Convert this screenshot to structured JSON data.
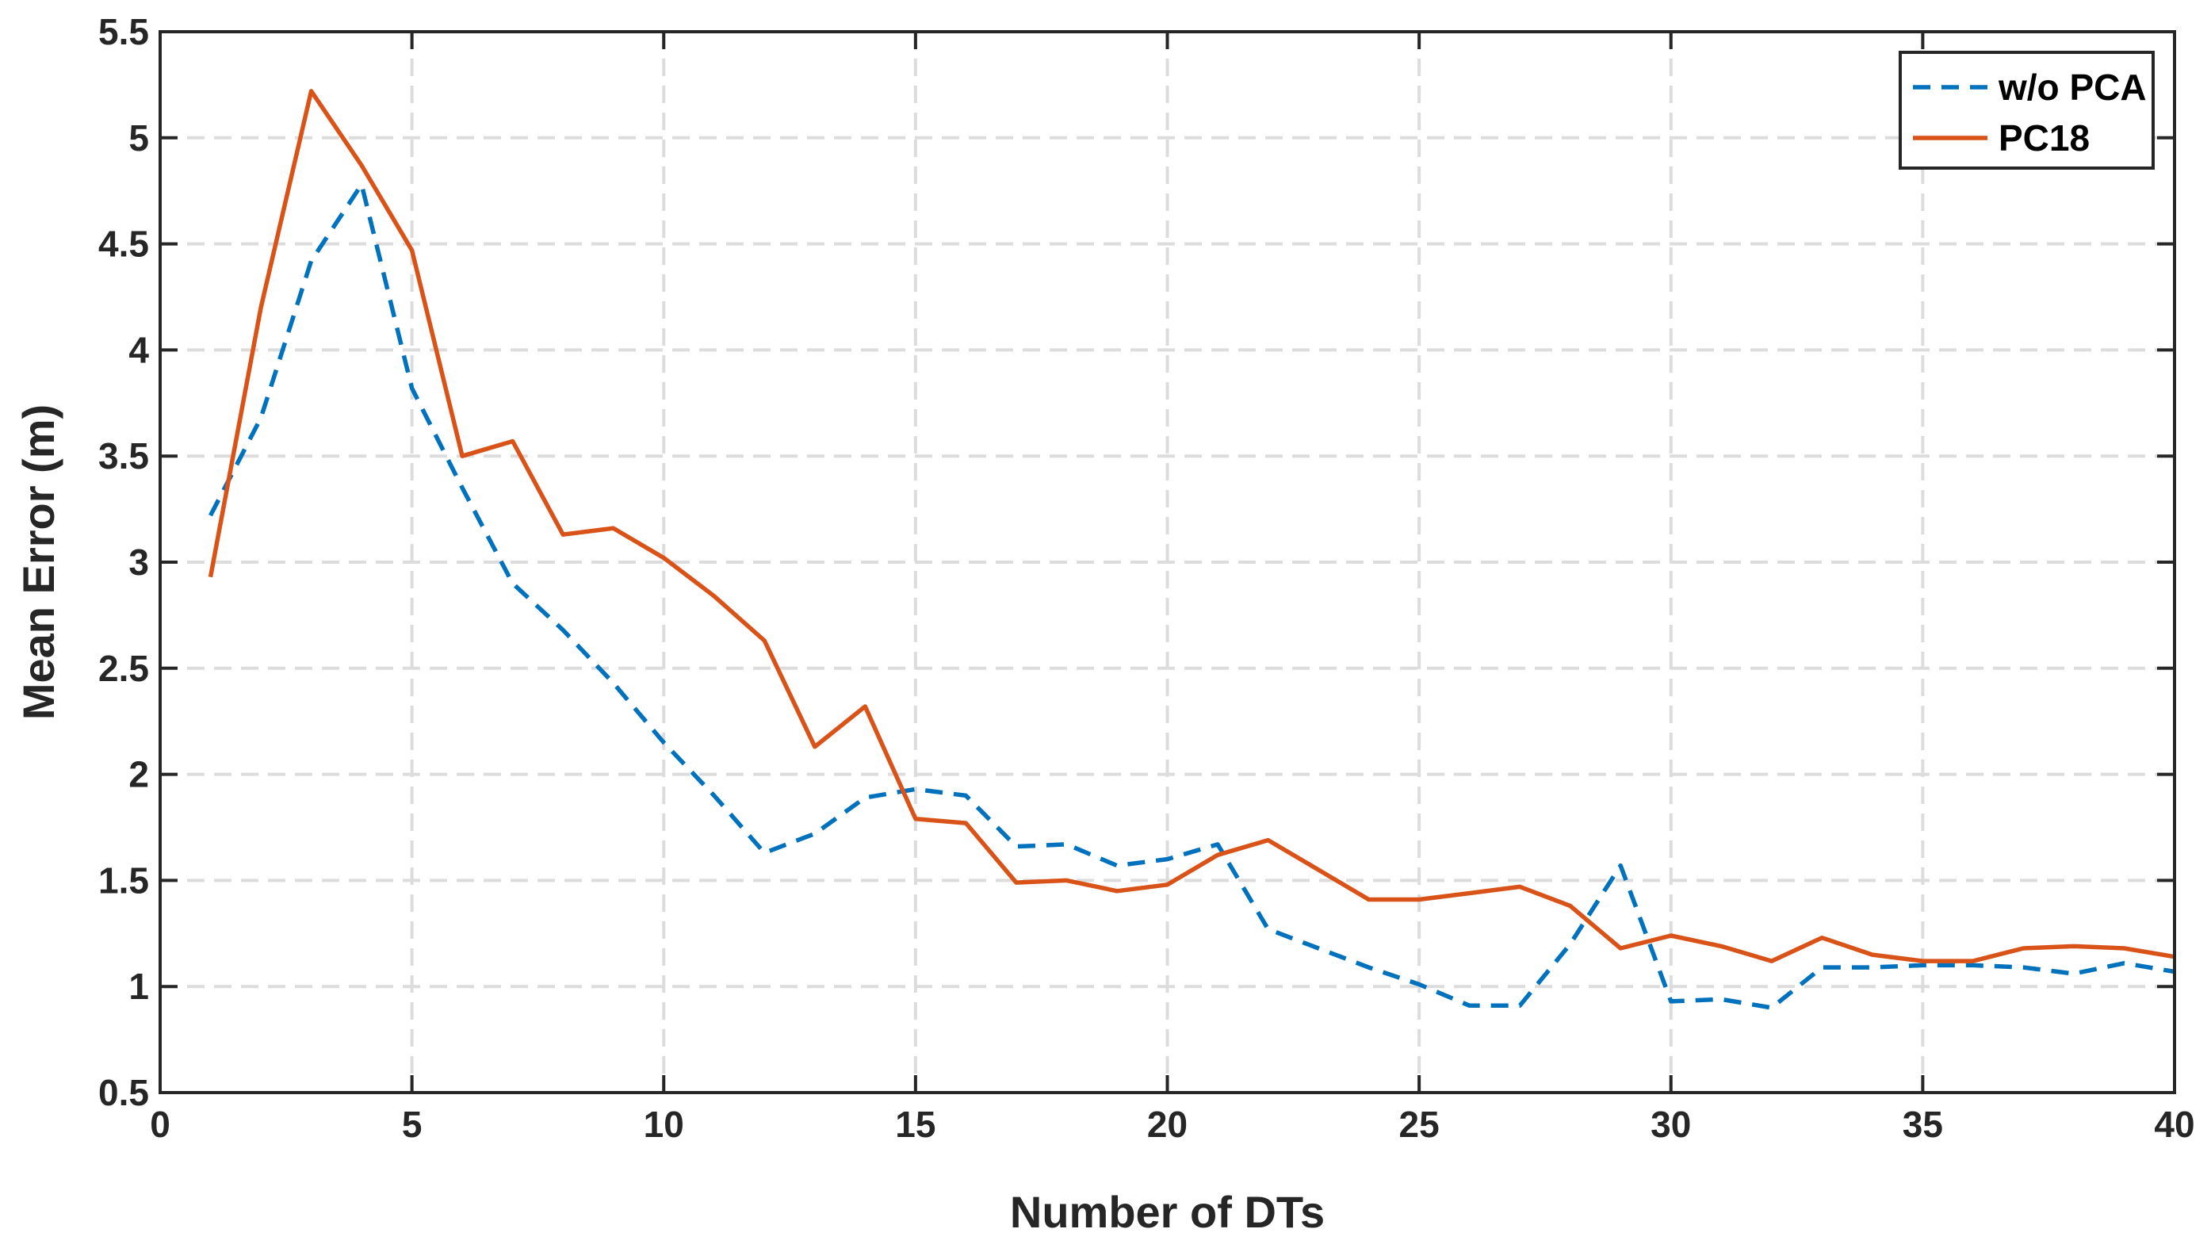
{
  "chart_data": {
    "type": "line",
    "title": "",
    "xlabel": "Number of DTs",
    "ylabel": "Mean Error (m)",
    "xlim": [
      0,
      40
    ],
    "ylim": [
      0.5,
      5.5
    ],
    "xticks": [
      0,
      5,
      10,
      15,
      20,
      25,
      30,
      35,
      40
    ],
    "yticks": [
      0.5,
      1,
      1.5,
      2,
      2.5,
      3,
      3.5,
      4,
      4.5,
      5,
      5.5
    ],
    "xtick_labels": [
      "0",
      "5",
      "10",
      "15",
      "20",
      "25",
      "30",
      "35",
      "40"
    ],
    "ytick_labels": [
      "0.5",
      "1",
      "1.5",
      "2",
      "2.5",
      "3",
      "3.5",
      "4",
      "4.5",
      "5",
      "5.5"
    ],
    "grid": true,
    "legend_position": "top-right",
    "x": [
      1,
      2,
      3,
      4,
      5,
      6,
      7,
      8,
      9,
      10,
      11,
      12,
      13,
      14,
      15,
      16,
      17,
      18,
      19,
      20,
      21,
      22,
      23,
      24,
      25,
      26,
      27,
      28,
      29,
      30,
      31,
      32,
      33,
      34,
      35,
      36,
      37,
      38,
      39,
      40
    ],
    "series": [
      {
        "name": "w/o PCA",
        "style": "dashed",
        "color": "#0072BD",
        "values": [
          3.22,
          3.68,
          4.42,
          4.78,
          3.82,
          3.35,
          2.9,
          2.68,
          2.43,
          2.15,
          1.9,
          1.63,
          1.72,
          1.89,
          1.93,
          1.9,
          1.66,
          1.67,
          1.57,
          1.6,
          1.67,
          1.27,
          1.18,
          1.09,
          1.01,
          0.91,
          0.91,
          1.2,
          1.57,
          0.93,
          0.94,
          0.9,
          1.09,
          1.09,
          1.1,
          1.1,
          1.09,
          1.06,
          1.11,
          1.07
        ]
      },
      {
        "name": "PC18",
        "style": "solid",
        "color": "#D95319",
        "values": [
          2.93,
          4.2,
          5.22,
          4.87,
          4.47,
          3.5,
          3.57,
          3.13,
          3.16,
          3.02,
          2.84,
          2.63,
          2.13,
          2.32,
          1.79,
          1.77,
          1.49,
          1.5,
          1.45,
          1.48,
          1.62,
          1.69,
          1.55,
          1.41,
          1.41,
          1.44,
          1.47,
          1.38,
          1.18,
          1.24,
          1.19,
          1.12,
          1.23,
          1.15,
          1.12,
          1.12,
          1.18,
          1.19,
          1.18,
          1.14
        ]
      }
    ]
  }
}
